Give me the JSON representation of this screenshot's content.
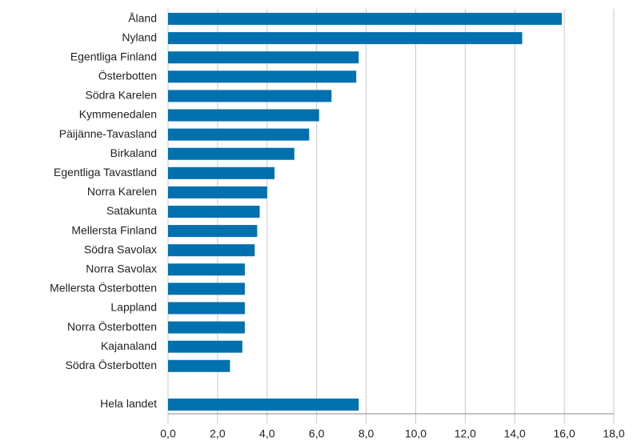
{
  "chart_data": {
    "type": "barh",
    "categories": [
      "Åland",
      "Nyland",
      "Egentliga Finland",
      "Österbotten",
      "Södra Karelen",
      "Kymmenedalen",
      "Päijänne-Tavasland",
      "Birkaland",
      "Egentliga Tavastland",
      "Norra Karelen",
      "Satakunta",
      "Mellersta Finland",
      "Södra Savolax",
      "Norra Savolax",
      "Mellersta Österbotten",
      "Lappland",
      "Norra Österbotten",
      "Kajanaland",
      "Södra Österbotten",
      null,
      "Hela landet"
    ],
    "values": [
      15.9,
      14.3,
      7.7,
      7.6,
      6.6,
      6.1,
      5.7,
      5.1,
      4.3,
      4.0,
      3.7,
      3.6,
      3.5,
      3.1,
      3.1,
      3.1,
      3.1,
      3.0,
      2.5,
      null,
      7.7
    ],
    "color": "#0070ae",
    "xlim": [
      0,
      18
    ],
    "xticks": [
      {
        "value": 0,
        "label": "0,0"
      },
      {
        "value": 2,
        "label": "2,0"
      },
      {
        "value": 4,
        "label": "4,0"
      },
      {
        "value": 6,
        "label": "6,0"
      },
      {
        "value": 8,
        "label": "8,0"
      },
      {
        "value": 10,
        "label": "10,0"
      },
      {
        "value": 12,
        "label": "12,0"
      },
      {
        "value": 14,
        "label": "14,0"
      },
      {
        "value": 16,
        "label": "16,0"
      },
      {
        "value": 18,
        "label": "18,0"
      }
    ],
    "grid": true
  }
}
